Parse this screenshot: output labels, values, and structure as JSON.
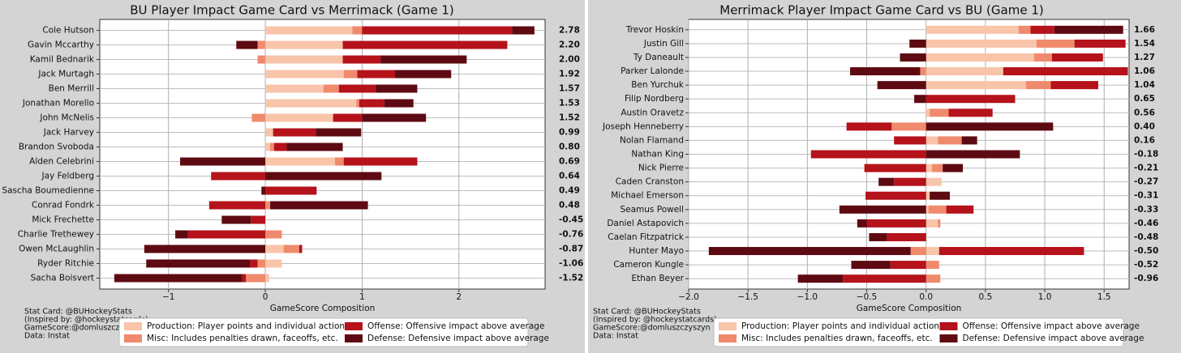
{
  "chart_data": [
    {
      "type": "bar",
      "orientation": "horizontal",
      "stacked": true,
      "title": "BU Player Impact Game Card vs Merrimack (Game 1)",
      "xlabel": "GameScore Composition",
      "categories": [
        "Cole Hutson",
        "Gavin Mccarthy",
        "Kamil Bednarik",
        "Jack Murtagh",
        "Ben Merrill",
        "Jonathan Morello",
        "John McNelis",
        "Jack Harvey",
        "Brandon Svoboda",
        "Alden Celebrini",
        "Jay Feldberg",
        "Sascha Boumedienne",
        "Conrad Fondrk",
        "Mick Frechette",
        "Charlie Trethewey",
        "Owen McLaughlin",
        "Ryder Ritchie",
        "Sacha Boisvert"
      ],
      "series": [
        {
          "name": "Production: Player points and individual actions",
          "color": "#f8c4aa",
          "values": [
            0.9,
            0.8,
            0.8,
            0.81,
            0.6,
            0.94,
            0.7,
            0.08,
            0.05,
            0.72,
            0,
            0,
            0,
            0,
            0,
            0.19,
            0.17,
            0.04
          ]
        },
        {
          "name": "Misc: Includes penalties drawn, faceoffs, etc.",
          "color": "#ef8a6c",
          "values": [
            0.1,
            -0.08,
            -0.08,
            0.14,
            0.16,
            0.03,
            -0.14,
            0,
            0.04,
            0.09,
            0,
            0,
            0.05,
            0,
            0.17,
            0.16,
            -0.08,
            -0.2
          ]
        },
        {
          "name": "Offense: Offensive impact above average",
          "color": "#b5121b",
          "values": [
            1.55,
            1.7,
            0.39,
            0.39,
            0.38,
            0.26,
            0.3,
            0.44,
            0.13,
            0.76,
            -0.56,
            0.53,
            -0.58,
            -0.15,
            -0.8,
            0.03,
            -0.08,
            -0.04
          ]
        },
        {
          "name": "Defense: Defensive impact above average",
          "color": "#5e0a12",
          "values": [
            0.23,
            -0.22,
            0.89,
            0.58,
            0.43,
            0.3,
            0.66,
            0.47,
            0.58,
            -0.88,
            1.2,
            -0.04,
            1.01,
            -0.3,
            -0.13,
            -1.25,
            -1.07,
            -1.32
          ]
        }
      ],
      "totals": [
        {
          "value": 2.78,
          "label": "2.78"
        },
        {
          "value": 2.2,
          "label": "2.20"
        },
        {
          "value": 2.0,
          "label": "2.00"
        },
        {
          "value": 1.92,
          "label": "1.92"
        },
        {
          "value": 1.57,
          "label": "1.57"
        },
        {
          "value": 1.53,
          "label": "1.53"
        },
        {
          "value": 1.52,
          "label": "1.52"
        },
        {
          "value": 0.99,
          "label": "0.99"
        },
        {
          "value": 0.8,
          "label": "0.80"
        },
        {
          "value": 0.69,
          "label": "0.69"
        },
        {
          "value": 0.64,
          "label": "0.64"
        },
        {
          "value": 0.49,
          "label": "0.49"
        },
        {
          "value": 0.48,
          "label": "0.48"
        },
        {
          "value": -0.45,
          "label": "-0.45"
        },
        {
          "value": -0.76,
          "label": "-0.76"
        },
        {
          "value": -0.87,
          "label": "-0.87"
        },
        {
          "value": -1.06,
          "label": "-1.06"
        },
        {
          "value": -1.52,
          "label": "-1.52"
        }
      ],
      "xlim": [
        -1.71,
        2.89
      ],
      "xticks": [
        {
          "value": -1,
          "label": "−1"
        },
        0,
        1,
        2
      ],
      "grid": true,
      "legend": "bottom",
      "notes": [
        "Stat Card: @BUHockeyStats",
        "(Inspired by: @hockeystatcards)",
        "GameScore:@domluszczyszyn",
        "Data: Instat"
      ]
    },
    {
      "type": "bar",
      "orientation": "horizontal",
      "stacked": true,
      "title": "Merrimack Player Impact Game Card vs BU (Game 1)",
      "xlabel": "GameScore Composition",
      "categories": [
        "Trevor Hoskin",
        "Justin Gill",
        "Ty Daneault",
        "Parker Lalonde",
        "Ben Yurchuk",
        "Filip Nordberg",
        "Austin Oravetz",
        "Joseph Henneberry",
        "Nolan Flamand",
        "Nathan King",
        "Nick Pierre",
        "Caden Cranston",
        "Michael Emerson",
        "Seamus Powell",
        "Daniel Astapovich",
        "Caelan Fitzpatrick",
        "Hunter Mayo",
        "Cameron Kungle",
        "Ethan Beyer"
      ],
      "series": [
        {
          "name": "Production: Player points and individual actions",
          "color": "#f8c4aa",
          "values": [
            0.78,
            0.93,
            0.91,
            0.65,
            0.84,
            0,
            0.03,
            0,
            0.1,
            0,
            0.05,
            0.13,
            0.03,
            0.02,
            0.1,
            0,
            0.11,
            0,
            0
          ]
        },
        {
          "name": "Misc: Includes penalties drawn, faceoffs, etc.",
          "color": "#ef8a6c",
          "values": [
            0.1,
            0.32,
            0.15,
            -0.05,
            0.21,
            0,
            0.16,
            -0.29,
            0.2,
            0,
            0.09,
            0,
            0,
            0.15,
            0.02,
            0,
            -0.13,
            0.11,
            0.12
          ]
        },
        {
          "name": "Offense: Offensive impact above average",
          "color": "#b5121b",
          "values": [
            0.2,
            0.43,
            0.43,
            1.05,
            0.4,
            0.75,
            0.37,
            -0.38,
            -0.27,
            -0.97,
            -0.52,
            -0.27,
            -0.51,
            0.23,
            -0.5,
            -0.33,
            1.22,
            -0.3,
            -0.7
          ]
        },
        {
          "name": "Defense: Defensive impact above average",
          "color": "#5e0a12",
          "values": [
            0.58,
            -0.14,
            -0.22,
            -0.59,
            -0.41,
            -0.1,
            0,
            1.07,
            0.13,
            0.79,
            0.17,
            -0.13,
            0.17,
            -0.73,
            -0.08,
            -0.15,
            -1.7,
            -0.33,
            -0.38
          ]
        }
      ],
      "totals": [
        {
          "value": 1.66,
          "label": "1.66"
        },
        {
          "value": 1.54,
          "label": "1.54"
        },
        {
          "value": 1.27,
          "label": "1.27"
        },
        {
          "value": 1.06,
          "label": "1.06"
        },
        {
          "value": 1.04,
          "label": "1.04"
        },
        {
          "value": 0.65,
          "label": "0.65"
        },
        {
          "value": 0.56,
          "label": "0.56"
        },
        {
          "value": 0.4,
          "label": "0.40"
        },
        {
          "value": 0.16,
          "label": "0.16"
        },
        {
          "value": -0.18,
          "label": "-0.18"
        },
        {
          "value": -0.21,
          "label": "-0.21"
        },
        {
          "value": -0.27,
          "label": "-0.27"
        },
        {
          "value": -0.31,
          "label": "-0.31"
        },
        {
          "value": -0.33,
          "label": "-0.33"
        },
        {
          "value": -0.46,
          "label": "-0.46"
        },
        {
          "value": -0.48,
          "label": "-0.48"
        },
        {
          "value": -0.5,
          "label": "-0.50"
        },
        {
          "value": -0.52,
          "label": "-0.52"
        },
        {
          "value": -0.96,
          "label": "-0.96"
        }
      ],
      "xlim": [
        -2.0,
        1.71
      ],
      "xticks": [
        {
          "value": -2,
          "label": "−2.0"
        },
        {
          "value": -1.5,
          "label": "−1.5"
        },
        {
          "value": -1,
          "label": "−1.0"
        },
        {
          "value": -0.5,
          "label": "−0.5"
        },
        {
          "value": 0,
          "label": "0.0"
        },
        {
          "value": 0.5,
          "label": "0.5"
        },
        {
          "value": 1,
          "label": "1.0"
        },
        {
          "value": 1.5,
          "label": "1.5"
        }
      ],
      "grid": true,
      "legend": "bottom",
      "notes": [
        "Stat Card: @BUHockeyStats",
        "(Inspired by: @hockeystatcards)",
        "GameScore:@domluszczyszyn",
        "Data: Instat"
      ]
    }
  ]
}
